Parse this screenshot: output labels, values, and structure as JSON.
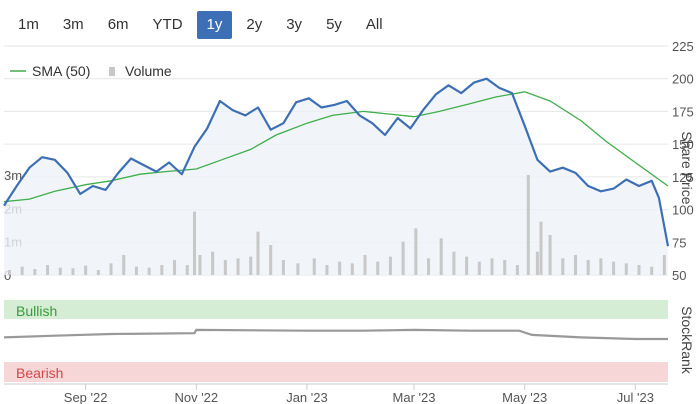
{
  "range_tabs": [
    {
      "label": "1m",
      "active": false
    },
    {
      "label": "3m",
      "active": false
    },
    {
      "label": "6m",
      "active": false
    },
    {
      "label": "YTD",
      "active": false
    },
    {
      "label": "1y",
      "active": true
    },
    {
      "label": "2y",
      "active": false
    },
    {
      "label": "3y",
      "active": false
    },
    {
      "label": "5y",
      "active": false
    },
    {
      "label": "All",
      "active": false
    }
  ],
  "colors": {
    "price_line": "#3d6fb6",
    "price_fill": "#eef2f8",
    "sma_line": "#3fae4b",
    "volume_bar": "#c8c8c8",
    "stockrank_line": "#999999",
    "bullish_band": "#d5ecd5",
    "bullish_text": "#3a9a3a",
    "bearish_band": "#f6d6d6",
    "bearish_text": "#d04a4a",
    "grid": "#e6e6e6",
    "active_tab": "#3d6fb6"
  },
  "chart_data": [
    {
      "type": "line",
      "legend": [
        "SMA (50)",
        "Volume"
      ],
      "legend_placement": "top-left",
      "y_axis_right_label": "Share Price",
      "ylim": [
        50,
        225
      ],
      "y_ticks": [
        "225",
        "200",
        "175",
        "150",
        "125",
        "100",
        "75",
        "50"
      ],
      "volume_axis_ticks": [
        "3m",
        "2m",
        "1m",
        "0"
      ],
      "volume_ylim": [
        0,
        3000000
      ],
      "x_ticks": [
        "Sep '22",
        "Nov '22",
        "Jan '23",
        "Mar '23",
        "May '23",
        "Jul '23"
      ],
      "x_tick_dates": [
        "2022-09-01",
        "2022-11-01",
        "2023-01-01",
        "2023-03-01",
        "2023-05-01",
        "2023-07-01"
      ],
      "x_range": [
        "2022-07-18",
        "2023-07-19"
      ],
      "series": [
        {
          "name": "Share Price",
          "points": [
            [
              "2022-07-18",
              103
            ],
            [
              "2022-07-25",
              118
            ],
            [
              "2022-08-01",
              132
            ],
            [
              "2022-08-08",
              140
            ],
            [
              "2022-08-15",
              138
            ],
            [
              "2022-08-22",
              128
            ],
            [
              "2022-08-29",
              112
            ],
            [
              "2022-09-05",
              118
            ],
            [
              "2022-09-12",
              115
            ],
            [
              "2022-09-19",
              128
            ],
            [
              "2022-09-26",
              139
            ],
            [
              "2022-10-03",
              134
            ],
            [
              "2022-10-10",
              129
            ],
            [
              "2022-10-17",
              136
            ],
            [
              "2022-10-24",
              127
            ],
            [
              "2022-10-31",
              148
            ],
            [
              "2022-11-07",
              162
            ],
            [
              "2022-11-14",
              183
            ],
            [
              "2022-11-21",
              176
            ],
            [
              "2022-11-28",
              172
            ],
            [
              "2022-12-05",
              178
            ],
            [
              "2022-12-12",
              161
            ],
            [
              "2022-12-19",
              166
            ],
            [
              "2022-12-26",
              182
            ],
            [
              "2023-01-02",
              185
            ],
            [
              "2023-01-09",
              178
            ],
            [
              "2023-01-16",
              180
            ],
            [
              "2023-01-23",
              183
            ],
            [
              "2023-01-30",
              172
            ],
            [
              "2023-02-06",
              166
            ],
            [
              "2023-02-13",
              157
            ],
            [
              "2023-02-20",
              170
            ],
            [
              "2023-02-27",
              162
            ],
            [
              "2023-03-06",
              176
            ],
            [
              "2023-03-13",
              188
            ],
            [
              "2023-03-20",
              195
            ],
            [
              "2023-03-27",
              189
            ],
            [
              "2023-04-03",
              197
            ],
            [
              "2023-04-10",
              200
            ],
            [
              "2023-04-17",
              193
            ],
            [
              "2023-04-24",
              189
            ],
            [
              "2023-05-01",
              164
            ],
            [
              "2023-05-08",
              138
            ],
            [
              "2023-05-15",
              129
            ],
            [
              "2023-05-22",
              132
            ],
            [
              "2023-05-29",
              128
            ],
            [
              "2023-06-05",
              118
            ],
            [
              "2023-06-12",
              114
            ],
            [
              "2023-06-19",
              116
            ],
            [
              "2023-06-26",
              123
            ],
            [
              "2023-07-03",
              118
            ],
            [
              "2023-07-10",
              122
            ],
            [
              "2023-07-14",
              109
            ],
            [
              "2023-07-19",
              72
            ]
          ]
        },
        {
          "name": "SMA (50)",
          "points": [
            [
              "2022-07-18",
              106
            ],
            [
              "2022-08-01",
              108
            ],
            [
              "2022-08-15",
              114
            ],
            [
              "2022-09-01",
              119
            ],
            [
              "2022-09-15",
              122
            ],
            [
              "2022-10-01",
              127
            ],
            [
              "2022-10-15",
              129
            ],
            [
              "2022-11-01",
              131
            ],
            [
              "2022-11-15",
              138
            ],
            [
              "2022-12-01",
              146
            ],
            [
              "2022-12-15",
              157
            ],
            [
              "2023-01-01",
              166
            ],
            [
              "2023-01-15",
              172
            ],
            [
              "2023-02-01",
              175
            ],
            [
              "2023-02-15",
              173
            ],
            [
              "2023-03-01",
              171
            ],
            [
              "2023-03-15",
              175
            ],
            [
              "2023-04-01",
              181
            ],
            [
              "2023-04-15",
              186
            ],
            [
              "2023-05-01",
              190
            ],
            [
              "2023-05-15",
              183
            ],
            [
              "2023-06-01",
              168
            ],
            [
              "2023-06-15",
              152
            ],
            [
              "2023-07-01",
              136
            ],
            [
              "2023-07-19",
              118
            ]
          ]
        },
        {
          "name": "Volume",
          "points": [
            [
              "2022-07-21",
              150000
            ],
            [
              "2022-07-28",
              250000
            ],
            [
              "2022-08-04",
              180000
            ],
            [
              "2022-08-11",
              300000
            ],
            [
              "2022-08-18",
              220000
            ],
            [
              "2022-08-25",
              200000
            ],
            [
              "2022-09-01",
              280000
            ],
            [
              "2022-09-08",
              150000
            ],
            [
              "2022-09-15",
              350000
            ],
            [
              "2022-09-22",
              600000
            ],
            [
              "2022-09-29",
              250000
            ],
            [
              "2022-10-06",
              220000
            ],
            [
              "2022-10-13",
              300000
            ],
            [
              "2022-10-20",
              450000
            ],
            [
              "2022-10-27",
              300000
            ],
            [
              "2022-10-31",
              1900000
            ],
            [
              "2022-11-03",
              600000
            ],
            [
              "2022-11-10",
              700000
            ],
            [
              "2022-11-17",
              450000
            ],
            [
              "2022-11-24",
              500000
            ],
            [
              "2022-12-01",
              550000
            ],
            [
              "2022-12-05",
              1300000
            ],
            [
              "2022-12-12",
              900000
            ],
            [
              "2022-12-19",
              450000
            ],
            [
              "2022-12-27",
              350000
            ],
            [
              "2023-01-05",
              500000
            ],
            [
              "2023-01-12",
              300000
            ],
            [
              "2023-01-19",
              400000
            ],
            [
              "2023-01-26",
              350000
            ],
            [
              "2023-02-02",
              600000
            ],
            [
              "2023-02-09",
              400000
            ],
            [
              "2023-02-16",
              550000
            ],
            [
              "2023-02-23",
              1000000
            ],
            [
              "2023-03-02",
              1400000
            ],
            [
              "2023-03-09",
              500000
            ],
            [
              "2023-03-16",
              1100000
            ],
            [
              "2023-03-23",
              700000
            ],
            [
              "2023-03-30",
              550000
            ],
            [
              "2023-04-06",
              400000
            ],
            [
              "2023-04-13",
              500000
            ],
            [
              "2023-04-20",
              450000
            ],
            [
              "2023-04-27",
              300000
            ],
            [
              "2023-05-03",
              3000000
            ],
            [
              "2023-05-08",
              700000
            ],
            [
              "2023-05-10",
              1600000
            ],
            [
              "2023-05-15",
              1200000
            ],
            [
              "2023-05-22",
              500000
            ],
            [
              "2023-05-29",
              600000
            ],
            [
              "2023-06-05",
              450000
            ],
            [
              "2023-06-12",
              500000
            ],
            [
              "2023-06-19",
              400000
            ],
            [
              "2023-06-26",
              350000
            ],
            [
              "2023-07-03",
              300000
            ],
            [
              "2023-07-10",
              250000
            ],
            [
              "2023-07-17",
              600000
            ]
          ]
        }
      ]
    },
    {
      "type": "line",
      "y_axis_right_label": "StockRank",
      "bands": {
        "top": "Bullish",
        "bottom": "Bearish"
      },
      "ylim": [
        0,
        100
      ],
      "series": [
        {
          "name": "StockRank",
          "points": [
            [
              "2022-07-18",
              55
            ],
            [
              "2022-08-15",
              57
            ],
            [
              "2022-09-15",
              59
            ],
            [
              "2022-10-31",
              60
            ],
            [
              "2022-11-01",
              64
            ],
            [
              "2023-01-01",
              63
            ],
            [
              "2023-02-01",
              63
            ],
            [
              "2023-03-01",
              64
            ],
            [
              "2023-04-01",
              63
            ],
            [
              "2023-04-28",
              63
            ],
            [
              "2023-05-05",
              58
            ],
            [
              "2023-06-01",
              55
            ],
            [
              "2023-07-01",
              53
            ],
            [
              "2023-07-19",
              53
            ]
          ]
        }
      ]
    }
  ]
}
